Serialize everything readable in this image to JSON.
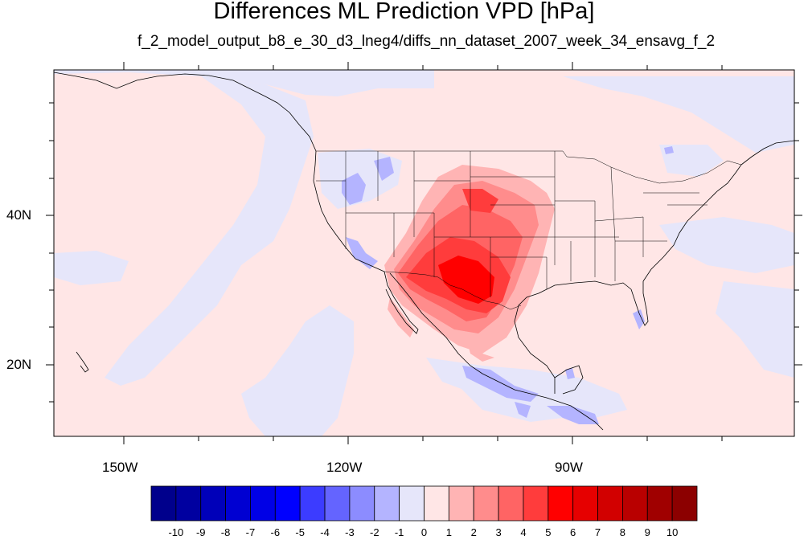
{
  "header": {
    "title": "Differences ML Prediction VPD [hPa]",
    "subtitle": "f_2_model_output_b8_e_30_d3_lneg4/diffs_nn_dataset_2007_week_34_ensavg_f_2"
  },
  "map": {
    "projection": "cylindrical-equidistant",
    "lon_range": [
      -160,
      -61
    ],
    "lat_range": [
      11,
      60
    ],
    "lon_ticks": [
      "150W",
      "120W",
      "90W"
    ],
    "lat_ticks": [
      "40N",
      "20N"
    ],
    "background_value_color": "#ffe6e6",
    "features": [
      "coastlines",
      "us-state-boundaries",
      "country-boundaries"
    ]
  },
  "colorbar": {
    "labels": [
      "-10",
      "-9",
      "-8",
      "-7",
      "-6",
      "-5",
      "-4",
      "-3",
      "-2",
      "-1",
      "0",
      "1",
      "2",
      "3",
      "4",
      "5",
      "6",
      "7",
      "8",
      "9",
      "10"
    ],
    "colors": [
      "#00008c",
      "#0000a0",
      "#0000b9",
      "#0000d2",
      "#0000e6",
      "#0000ff",
      "#3c3cff",
      "#6464ff",
      "#8c8cff",
      "#b4b4ff",
      "#e6e6fa",
      "#ffe6e6",
      "#ffb4b4",
      "#ff8c8c",
      "#ff6464",
      "#ff3c3c",
      "#ff0000",
      "#e60000",
      "#d20000",
      "#b90000",
      "#a00000",
      "#8c0000"
    ]
  },
  "fields": {
    "positive_anomaly": {
      "peak_range": "5 to 7",
      "region": "southwestern United States / northern Mexico"
    },
    "negative_anomaly": {
      "peak_range": "-2 to -4",
      "region": "Pacific coast of Mexico, northwest US, Atlantic"
    }
  }
}
